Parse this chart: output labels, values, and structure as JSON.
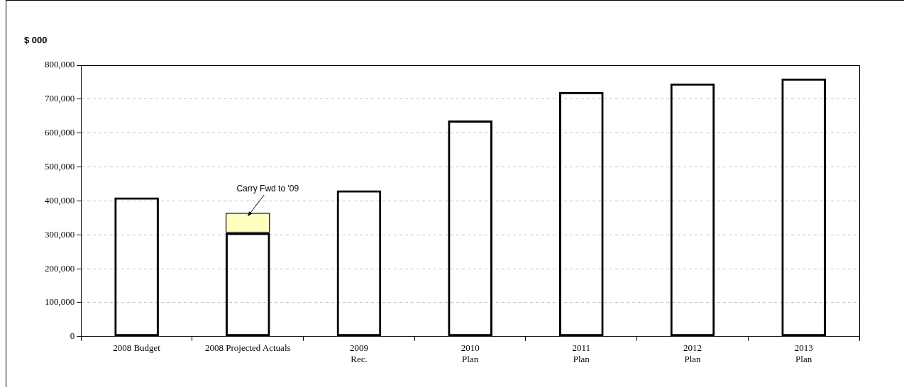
{
  "chart_data": {
    "type": "bar",
    "ylabel": "$ 000",
    "categories": [
      "2008 Budget",
      "2008 Projected Actuals",
      "2009\nRec.",
      "2010\nPlan",
      "2011\nPlan",
      "2012\nPlan",
      "2013\nPlan"
    ],
    "series": [
      {
        "color": "#000000",
        "values": [
          410000,
          306000,
          431000,
          637000,
          721000,
          746000,
          761000
        ]
      },
      {
        "color": "#ffffc0",
        "values": [
          null,
          59000,
          null,
          null,
          null,
          null,
          null
        ]
      }
    ],
    "stacked": true,
    "ylim": [
      0,
      800000
    ],
    "yticks": [
      0,
      {
        "value": 100000,
        "label": "100,000"
      },
      {
        "value": 200000,
        "label": "200,000"
      },
      {
        "value": 300000,
        "label": "300,000"
      },
      {
        "value": 400000,
        "label": "400,000"
      },
      {
        "value": 500000,
        "label": "500,000"
      },
      {
        "value": 600000,
        "label": "600,000"
      },
      {
        "value": 700000,
        "label": "700,000"
      },
      {
        "value": 800000,
        "label": "800,000"
      }
    ],
    "grid": "y",
    "legend": false,
    "annotations": [
      {
        "text": "Carry Fwd to '09",
        "x": "2008 Projected Actuals",
        "y": 355000
      }
    ]
  }
}
